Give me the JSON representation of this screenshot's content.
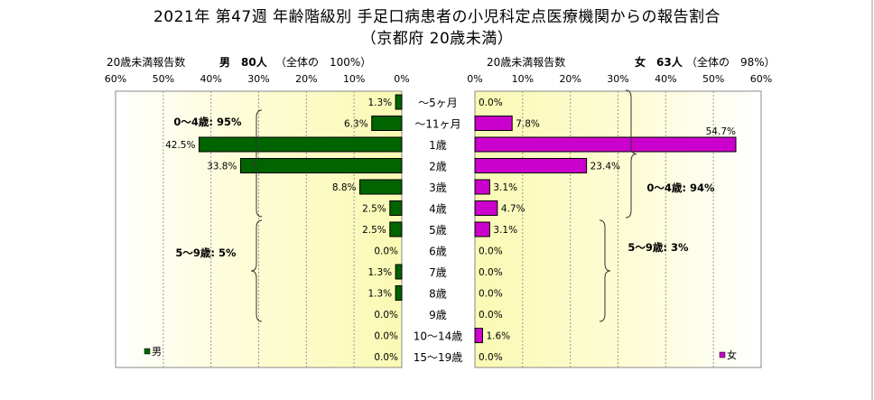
{
  "chart_data": {
    "type": "bar",
    "title": "2021年 第47週 年齢階級別 手足口病患者の小児科定点医療機関からの報告割合",
    "subtitle": "（京都府 20歳未満）",
    "categories": [
      "～5ヶ月",
      "～11ヶ月",
      "1歳",
      "2歳",
      "3歳",
      "4歳",
      "5歳",
      "6歳",
      "7歳",
      "8歳",
      "9歳",
      "10～14歳",
      "15～19歳"
    ],
    "xlim": [
      0,
      60
    ],
    "ticks": [
      "60%",
      "50%",
      "40%",
      "30%",
      "20%",
      "10%",
      "0%"
    ],
    "ticks_right": [
      "0%",
      "10%",
      "20%",
      "30%",
      "40%",
      "50%",
      "60%"
    ],
    "series": [
      {
        "name": "男",
        "color": "#006400",
        "header_label": "20歳未満報告数",
        "header_group": "男　80人",
        "header_share": "（全体の　100%）",
        "values": [
          1.3,
          6.3,
          42.5,
          33.8,
          8.8,
          2.5,
          2.5,
          0.0,
          1.3,
          1.3,
          0.0,
          0.0,
          0.0
        ],
        "labels": [
          "1.3%",
          "6.3%",
          "42.5%",
          "33.8%",
          "8.8%",
          "2.5%",
          "2.5%",
          "0.0%",
          "1.3%",
          "1.3%",
          "0.0%",
          "0.0%",
          "0.0%"
        ],
        "group_notes": [
          "0～4歳: 95%",
          "5～9歳: 5%"
        ]
      },
      {
        "name": "女",
        "color": "#CC00CC",
        "header_label": "20歳未満報告数",
        "header_group": "女　63人",
        "header_share": "（全体の　98%）",
        "values": [
          0.0,
          7.8,
          54.7,
          23.4,
          3.1,
          4.7,
          3.1,
          0.0,
          0.0,
          0.0,
          0.0,
          1.6,
          0.0
        ],
        "labels": [
          "0.0%",
          "7.8%",
          "54.7%",
          "23.4%",
          "3.1%",
          "4.7%",
          "3.1%",
          "0.0%",
          "0.0%",
          "0.0%",
          "0.0%",
          "1.6%",
          "0.0%"
        ],
        "group_notes": [
          "0～4歳: 94%",
          "5～9歳: 3%"
        ]
      }
    ],
    "legend": [
      "男",
      "女"
    ]
  }
}
